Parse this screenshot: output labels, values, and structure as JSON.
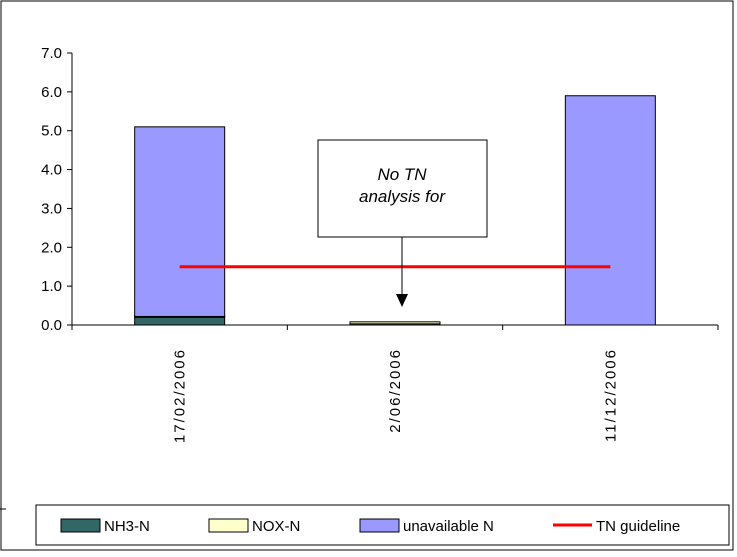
{
  "chart_data": {
    "type": "bar",
    "stacked": true,
    "categories": [
      "17/02/2006",
      "2/06/2006",
      "11/12/2006"
    ],
    "series": [
      {
        "name": "NH3-N",
        "values": [
          0.2,
          0.03,
          0.0
        ],
        "color": "#336666"
      },
      {
        "name": "NOX-N",
        "values": [
          0.02,
          0.01,
          0.0
        ],
        "color": "#ffffcc"
      },
      {
        "name": "unavailable N",
        "values": [
          4.88,
          0.0,
          5.9
        ],
        "color": "#9999ff"
      }
    ],
    "guideline": {
      "name": "TN guideline",
      "value": 1.5,
      "color": "#ff0000"
    },
    "y_ticks": [
      "0.0",
      "1.0",
      "2.0",
      "3.0",
      "4.0",
      "5.0",
      "6.0",
      "7.0"
    ],
    "ylim": [
      0,
      7
    ],
    "grid": false,
    "legend_position": "bottom",
    "annotation": {
      "text_line1": "No TN",
      "text_line2": "analysis for",
      "category": "2/06/2006"
    }
  }
}
